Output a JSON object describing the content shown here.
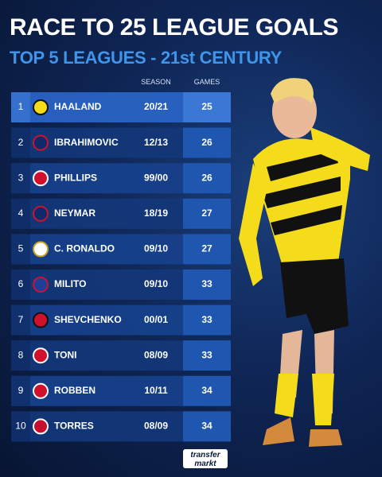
{
  "header": {
    "title": "RACE TO 25 LEAGUE GOALS",
    "subtitle": "TOP 5 LEAGUES - 21st CENTURY"
  },
  "table": {
    "columns": [
      "SEASON",
      "GAMES"
    ],
    "rows": [
      {
        "rank": 1,
        "player": "HAALAND",
        "season": "20/21",
        "games": 25
      },
      {
        "rank": 2,
        "player": "IBRAHIMOVIC",
        "season": "12/13",
        "games": 26
      },
      {
        "rank": 3,
        "player": "PHILLIPS",
        "season": "99/00",
        "games": 26
      },
      {
        "rank": 4,
        "player": "NEYMAR",
        "season": "18/19",
        "games": 27
      },
      {
        "rank": 5,
        "player": "C. RONALDO",
        "season": "09/10",
        "games": 27
      },
      {
        "rank": 6,
        "player": "MILITO",
        "season": "09/10",
        "games": 33
      },
      {
        "rank": 7,
        "player": "SHEVCHENKO",
        "season": "00/01",
        "games": 33
      },
      {
        "rank": 8,
        "player": "TONI",
        "season": "08/09",
        "games": 33
      },
      {
        "rank": 9,
        "player": "ROBBEN",
        "season": "10/11",
        "games": 34
      },
      {
        "rank": 10,
        "player": "TORRES",
        "season": "08/09",
        "games": 34
      }
    ]
  },
  "footer": {
    "logo_top": "transfer",
    "logo_bottom": "markt"
  }
}
